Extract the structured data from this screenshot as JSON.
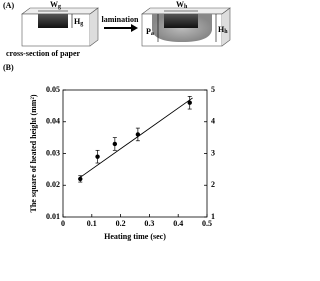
{
  "panel_a": {
    "label": "(A)",
    "left_width": {
      "text": "W",
      "sub": "g"
    },
    "left_height": {
      "text": "H",
      "sub": "g"
    },
    "caption": "cross-section of paper",
    "arrow_label": "lamination",
    "right_width": {
      "text": "W",
      "sub": "h"
    },
    "right_depth": {
      "text": "P",
      "sub": "a"
    },
    "right_height": {
      "text": "H",
      "sub": "h"
    }
  },
  "panel_b_label": "(B)",
  "chart_data": {
    "type": "scatter",
    "xlabel": "Heating time (sec)",
    "ylabel": "The square of heated height (mm²)",
    "xlim": [
      0,
      0.5
    ],
    "xticks": [
      0,
      0.1,
      0.2,
      0.3,
      0.4,
      0.5
    ],
    "ylim": [
      0.01,
      0.05
    ],
    "yticks": [
      0.01,
      0.02,
      0.03,
      0.04,
      0.05
    ],
    "y2lim": [
      1,
      5
    ],
    "y2ticks": [
      1,
      2,
      3,
      4,
      5
    ],
    "series": [
      {
        "color": "#000000",
        "x": [
          0.06,
          0.12,
          0.18,
          0.26,
          0.44
        ],
        "values": [
          0.022,
          0.029,
          0.033,
          0.036,
          0.046
        ],
        "errors": [
          0.001,
          0.002,
          0.002,
          0.002,
          0.002
        ]
      }
    ],
    "fit_line": {
      "color": "#000000",
      "x": [
        0.06,
        0.45
      ],
      "values": [
        0.0225,
        0.0475
      ]
    }
  }
}
